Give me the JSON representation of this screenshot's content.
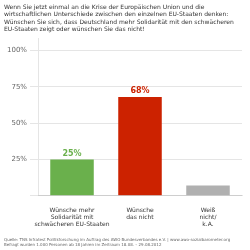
{
  "chart_data": {
    "type": "bar",
    "title": "Wenn Sie jetzt einmal an die Krise der Europäischen Union und die\nwirtschaftlichen Unterschiede zwischen den einzelnen EU-Staaten denken:\nWünschen Sie sich, dass Deutschland mehr Solidarität mit den schwächeren\nEU-Staaten zeigt oder wünschen Sie das nicht!",
    "categories": [
      "Wünsche mehr\nSolidarität mit\nschwächeren EU-Staaten",
      "Wünsche\ndas nicht",
      "Weiß\nnicht/\nk.A."
    ],
    "values": [
      25,
      68,
      7
    ],
    "value_labels": [
      "25%",
      "68%",
      null
    ],
    "data_labels": true,
    "colors": [
      "#6ab04c",
      "#cc2200",
      "#b0b0b0"
    ],
    "ylim": [
      0,
      108
    ],
    "yticks": [
      {
        "value": 0,
        "label": ""
      },
      {
        "value": 25,
        "label": "25%"
      },
      {
        "value": 50,
        "label": "50%"
      },
      {
        "value": 75,
        "label": "75%"
      },
      {
        "value": 100,
        "label": "100%"
      }
    ],
    "grid": true,
    "footer": "Quelle: TNS Infratest Politikforschung im Auftrag des AWO Bundesverbandes e.V. | www.awo-sozialbarometer.org\nBefragt wurden 1.000 Personen ab 18 Jahren im Zeitraum 18.08. – 29.08.2012"
  }
}
